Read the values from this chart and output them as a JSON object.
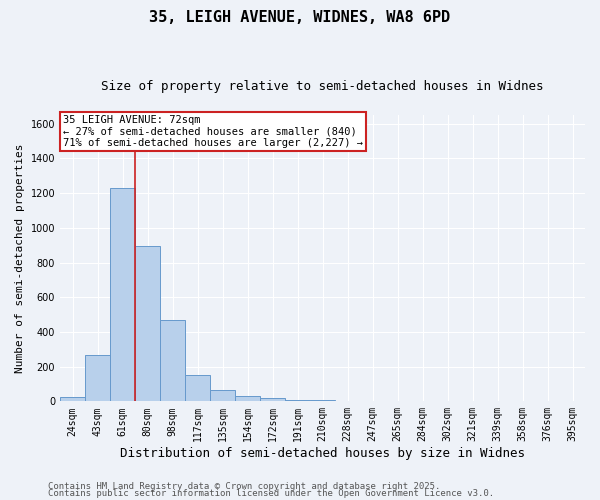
{
  "title1": "35, LEIGH AVENUE, WIDNES, WA8 6PD",
  "title2": "Size of property relative to semi-detached houses in Widnes",
  "xlabel": "Distribution of semi-detached houses by size in Widnes",
  "ylabel": "Number of semi-detached properties",
  "categories": [
    "24sqm",
    "43sqm",
    "61sqm",
    "80sqm",
    "98sqm",
    "117sqm",
    "135sqm",
    "154sqm",
    "172sqm",
    "191sqm",
    "210sqm",
    "228sqm",
    "247sqm",
    "265sqm",
    "284sqm",
    "302sqm",
    "321sqm",
    "339sqm",
    "358sqm",
    "376sqm",
    "395sqm"
  ],
  "values": [
    25,
    265,
    1230,
    895,
    470,
    150,
    68,
    28,
    18,
    10,
    8,
    0,
    0,
    0,
    0,
    0,
    0,
    0,
    0,
    0,
    0
  ],
  "bar_color": "#b8d0eb",
  "bar_edge_color": "#6699cc",
  "vline_x": 2.5,
  "vline_color": "#cc2222",
  "annotation_title": "35 LEIGH AVENUE: 72sqm",
  "annotation_line1": "← 27% of semi-detached houses are smaller (840)",
  "annotation_line2": "71% of semi-detached houses are larger (2,227) →",
  "annotation_box_color": "#ffffff",
  "annotation_box_edge": "#cc2222",
  "ylim": [
    0,
    1650
  ],
  "yticks": [
    0,
    200,
    400,
    600,
    800,
    1000,
    1200,
    1400,
    1600
  ],
  "footnote1": "Contains HM Land Registry data © Crown copyright and database right 2025.",
  "footnote2": "Contains public sector information licensed under the Open Government Licence v3.0.",
  "background_color": "#eef2f8",
  "grid_color": "#ffffff",
  "title1_fontsize": 11,
  "title2_fontsize": 9,
  "xlabel_fontsize": 9,
  "ylabel_fontsize": 8,
  "tick_fontsize": 7,
  "annotation_fontsize": 7.5,
  "footnote_fontsize": 6.5
}
